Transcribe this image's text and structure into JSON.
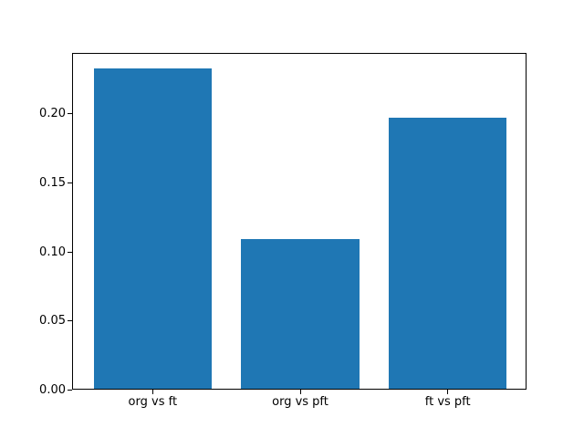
{
  "chart_data": {
    "type": "bar",
    "title": "",
    "xlabel": "",
    "ylabel": "",
    "categories": [
      "org vs ft",
      "org vs pft",
      "ft vs pft"
    ],
    "values": [
      0.232,
      0.108,
      0.196
    ],
    "bar_color": "#1f77b4",
    "bar_width": 0.8,
    "xlim": [
      -0.54,
      2.54
    ],
    "ylim": [
      0,
      0.2436
    ],
    "yticks": [
      0.0,
      0.05,
      0.1,
      0.15,
      0.2
    ],
    "ytick_labels": [
      "0.00",
      "0.05",
      "0.10",
      "0.15",
      "0.20"
    ],
    "grid": false,
    "legend": "none",
    "background_color": "#ffffff",
    "spine_color": "#000000"
  }
}
